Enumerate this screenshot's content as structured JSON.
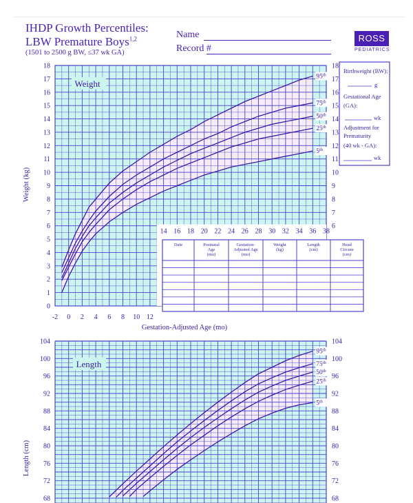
{
  "header": {
    "title_line1": "IHDP Growth Percentiles:",
    "title_line2": "LBW Premature Boys",
    "title_sup": "1,2",
    "subtitle": "(1501 to 2500 g BW, ≤37 wk GA)",
    "name_label": "Name",
    "record_label": "Record #",
    "logo_text": "ROSS",
    "logo_sub": "PEDIATRICS"
  },
  "sidebar": {
    "line1": "Birthweight (BW):",
    "unit_g": "g",
    "line2": "Gestational Age",
    "line3": "(GA):",
    "unit_wk": "wk",
    "line4": "Adjustment for",
    "line5": "Prematurity",
    "line6": "(40 wk - GA):",
    "unit_wk2": "wk"
  },
  "table": {
    "headers": [
      [
        "Date"
      ],
      [
        "Postnatal",
        "Age",
        "(mo)"
      ],
      [
        "Gestation-",
        "Adjusted Age",
        "(mo)"
      ],
      [
        "Weight",
        "(kg)"
      ],
      [
        "Length",
        "(cm)"
      ],
      [
        "Head",
        "Circum",
        "(cm)"
      ]
    ]
  },
  "colors": {
    "grid_bg": "#cdf5ef",
    "grid_line": "#4a3fd0",
    "curve": "#3a1aa8",
    "band": "#fbeaf8",
    "text": "#3a1aa8"
  },
  "chart_data": [
    {
      "type": "line",
      "title": "Weight",
      "xlabel": "Gestation-Adjusted Age (mo)",
      "ylabel": "Weight (kg)",
      "xlim": [
        -2,
        38
      ],
      "ylim": [
        0,
        18
      ],
      "x_ticks_lower": [
        "-2",
        "0",
        "2",
        "4",
        "6",
        "8",
        "10",
        "12"
      ],
      "x_ticks_upper": [
        "14",
        "16",
        "18",
        "20",
        "22",
        "24",
        "26",
        "28",
        "30",
        "32",
        "34",
        "36",
        "38"
      ],
      "y_ticks_left": [
        "0",
        "1",
        "2",
        "3",
        "4",
        "5",
        "6",
        "7",
        "8",
        "9",
        "10",
        "11",
        "12",
        "13",
        "14",
        "15",
        "16",
        "17",
        "18"
      ],
      "y_ticks_right": [
        "6",
        "7",
        "8",
        "9",
        "10",
        "11",
        "12",
        "13",
        "14",
        "15",
        "16",
        "17",
        "18"
      ],
      "percentile_labels": [
        "95th",
        "75th",
        "50th",
        "25th",
        "5th"
      ],
      "series": [
        {
          "name": "95th",
          "x": [
            -1,
            0,
            1,
            2,
            3,
            4,
            6,
            8,
            10,
            12,
            14,
            16,
            18,
            20,
            22,
            24,
            26,
            28,
            30,
            32,
            34,
            36
          ],
          "values": [
            2.9,
            4.2,
            5.4,
            6.4,
            7.4,
            8.0,
            9.2,
            10.1,
            10.8,
            11.5,
            12.1,
            12.7,
            13.2,
            13.8,
            14.3,
            14.8,
            15.3,
            15.7,
            16.1,
            16.5,
            16.9,
            17.2
          ]
        },
        {
          "name": "75th",
          "x": [
            -1,
            0,
            1,
            2,
            3,
            4,
            6,
            8,
            10,
            12,
            14,
            16,
            18,
            20,
            22,
            24,
            26,
            28,
            30,
            32,
            34,
            36
          ],
          "values": [
            2.5,
            3.6,
            4.7,
            5.6,
            6.4,
            7.1,
            8.2,
            9.1,
            9.8,
            10.4,
            11.0,
            11.5,
            12.0,
            12.5,
            12.9,
            13.4,
            13.8,
            14.2,
            14.5,
            14.8,
            15.0,
            15.2
          ]
        },
        {
          "name": "50th",
          "x": [
            -1,
            0,
            1,
            2,
            3,
            4,
            6,
            8,
            10,
            12,
            14,
            16,
            18,
            20,
            22,
            24,
            26,
            28,
            30,
            32,
            34,
            36
          ],
          "values": [
            2.1,
            3.2,
            4.3,
            5.2,
            6.0,
            6.6,
            7.7,
            8.5,
            9.2,
            9.8,
            10.4,
            10.9,
            11.4,
            11.8,
            12.2,
            12.6,
            13.0,
            13.3,
            13.6,
            13.8,
            14.0,
            14.2
          ]
        },
        {
          "name": "25th",
          "x": [
            -1,
            0,
            1,
            2,
            3,
            4,
            6,
            8,
            10,
            12,
            14,
            16,
            18,
            20,
            22,
            24,
            26,
            28,
            30,
            32,
            34,
            36
          ],
          "values": [
            1.9,
            2.9,
            3.9,
            4.8,
            5.5,
            6.1,
            7.2,
            8.0,
            8.7,
            9.3,
            9.8,
            10.3,
            10.7,
            11.1,
            11.5,
            11.9,
            12.2,
            12.5,
            12.7,
            12.9,
            13.1,
            13.3
          ]
        },
        {
          "name": "5th",
          "x": [
            -1,
            0,
            1,
            2,
            3,
            4,
            6,
            8,
            10,
            12,
            14,
            16,
            18,
            20,
            22,
            24,
            26,
            28,
            30,
            32,
            34,
            36
          ],
          "values": [
            1.0,
            2.2,
            3.2,
            4.1,
            4.8,
            5.4,
            6.3,
            7.0,
            7.6,
            8.1,
            8.6,
            9.0,
            9.4,
            9.8,
            10.1,
            10.4,
            10.6,
            10.8,
            11.0,
            11.2,
            11.4,
            11.6
          ]
        }
      ]
    },
    {
      "type": "line",
      "title": "Length",
      "xlabel": "",
      "ylabel": "Length (cm)",
      "xlim": [
        -2,
        38
      ],
      "ylim": [
        68,
        104
      ],
      "y_ticks": [
        "68",
        "72",
        "76",
        "80",
        "84",
        "88",
        "92",
        "96",
        "100",
        "104"
      ],
      "percentile_labels": [
        "95th",
        "75th",
        "50th",
        "25th",
        "5th"
      ],
      "series": [
        {
          "name": "95th",
          "x": [
            6,
            8,
            10,
            12,
            14,
            16,
            18,
            20,
            22,
            24,
            26,
            28,
            30,
            32,
            34,
            36
          ],
          "values": [
            68.3,
            71.3,
            74.2,
            77.0,
            79.8,
            82.5,
            85.1,
            87.6,
            90.0,
            92.3,
            94.5,
            96.5,
            98.0,
            99.5,
            100.7,
            101.7
          ]
        },
        {
          "name": "75th",
          "x": [
            7,
            8,
            10,
            12,
            14,
            16,
            18,
            20,
            22,
            24,
            26,
            28,
            30,
            32,
            34,
            36
          ],
          "values": [
            68.2,
            69.8,
            72.6,
            75.4,
            78.2,
            80.9,
            83.4,
            85.8,
            88.1,
            90.3,
            92.4,
            94.2,
            95.6,
            96.9,
            97.9,
            98.8
          ]
        },
        {
          "name": "50th",
          "x": [
            8,
            10,
            12,
            14,
            16,
            18,
            20,
            22,
            24,
            26,
            28,
            30,
            32,
            34,
            36
          ],
          "values": [
            68.5,
            71.4,
            74.1,
            76.8,
            79.4,
            81.9,
            84.2,
            86.4,
            88.5,
            90.5,
            92.3,
            93.7,
            95.0,
            96.0,
            96.9
          ]
        },
        {
          "name": "25th",
          "x": [
            9,
            10,
            12,
            14,
            16,
            18,
            20,
            22,
            24,
            26,
            28,
            30,
            32,
            34,
            36
          ],
          "values": [
            68.4,
            70.0,
            72.7,
            75.3,
            77.8,
            80.2,
            82.4,
            84.6,
            86.6,
            88.5,
            90.2,
            91.6,
            92.9,
            93.9,
            94.8
          ]
        },
        {
          "name": "5th",
          "x": [
            11,
            12,
            14,
            16,
            18,
            20,
            22,
            24,
            26,
            28,
            30,
            32,
            34,
            36
          ],
          "values": [
            68.4,
            69.7,
            72.2,
            74.6,
            76.8,
            78.9,
            80.9,
            82.8,
            84.6,
            86.2,
            87.5,
            88.6,
            89.4,
            89.9
          ]
        }
      ]
    }
  ]
}
